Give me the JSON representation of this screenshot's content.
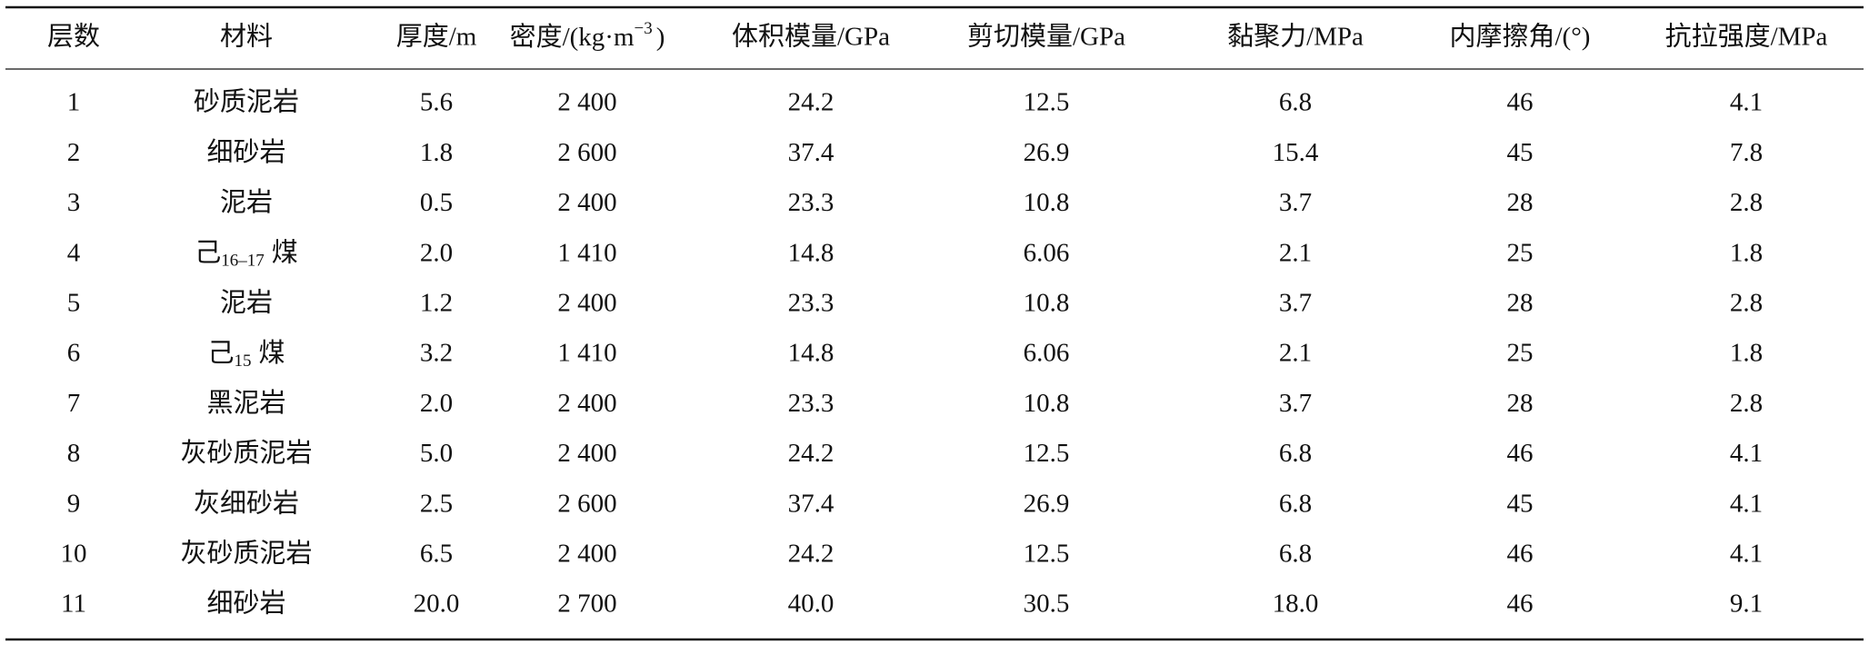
{
  "table": {
    "header": [
      "层数",
      "材料",
      "厚度/m",
      {
        "base": "密度/(kg·m",
        "sup": "−3",
        "tail": ")"
      },
      "体积模量/GPa",
      "剪切模量/GPa",
      "黏聚力/MPa",
      "内摩擦角/(°)",
      "抗拉强度/MPa"
    ],
    "rows": [
      [
        "1",
        "砂质泥岩",
        "5.6",
        "2 400",
        "24.2",
        "12.5",
        "6.8",
        "46",
        "4.1"
      ],
      [
        "2",
        "细砂岩",
        "1.8",
        "2 600",
        "37.4",
        "26.9",
        "15.4",
        "45",
        "7.8"
      ],
      [
        "3",
        "泥岩",
        "0.5",
        "2 400",
        "23.3",
        "10.8",
        "3.7",
        "28",
        "2.8"
      ],
      [
        "4",
        {
          "base": "己",
          "sub": "16–17",
          "tail": "煤"
        },
        "2.0",
        "1 410",
        "14.8",
        "6.06",
        "2.1",
        "25",
        "1.8"
      ],
      [
        "5",
        "泥岩",
        "1.2",
        "2 400",
        "23.3",
        "10.8",
        "3.7",
        "28",
        "2.8"
      ],
      [
        "6",
        {
          "base": "己",
          "sub": "15",
          "tail": "煤"
        },
        "3.2",
        "1 410",
        "14.8",
        "6.06",
        "2.1",
        "25",
        "1.8"
      ],
      [
        "7",
        "黑泥岩",
        "2.0",
        "2 400",
        "23.3",
        "10.8",
        "3.7",
        "28",
        "2.8"
      ],
      [
        "8",
        "灰砂质泥岩",
        "5.0",
        "2 400",
        "24.2",
        "12.5",
        "6.8",
        "46",
        "4.1"
      ],
      [
        "9",
        "灰细砂岩",
        "2.5",
        "2 600",
        "37.4",
        "26.9",
        "6.8",
        "45",
        "4.1"
      ],
      [
        "10",
        "灰砂质泥岩",
        "6.5",
        "2 400",
        "24.2",
        "12.5",
        "6.8",
        "46",
        "4.1"
      ],
      [
        "11",
        "细砂岩",
        "20.0",
        "2 700",
        "40.0",
        "30.5",
        "18.0",
        "46",
        "9.1"
      ]
    ]
  }
}
